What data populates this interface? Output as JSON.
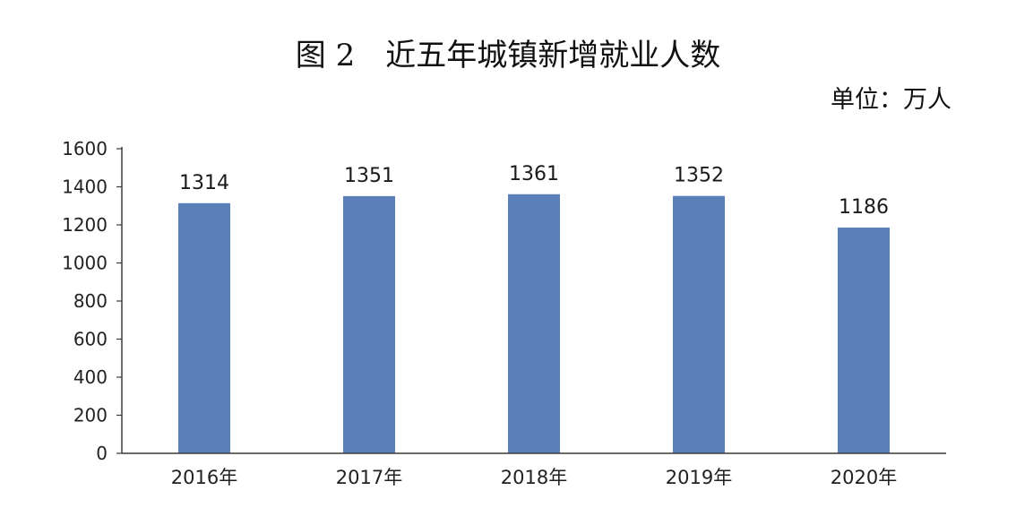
{
  "title": "图 2　近五年城镇新增就业人数",
  "unit_label": "单位：万人",
  "chart_data": {
    "type": "bar",
    "title": "图 2　近五年城镇新增就业人数",
    "xlabel": "",
    "ylabel": "",
    "unit": "单位：万人",
    "categories": [
      "2016年",
      "2017年",
      "2018年",
      "2019年",
      "2020年"
    ],
    "values": [
      1314,
      1351,
      1361,
      1352,
      1186
    ],
    "data_labels": [
      "1314",
      "1351",
      "1361",
      "1352",
      "1186"
    ],
    "ylim": [
      0,
      1600
    ],
    "yticks": [
      0,
      200,
      400,
      600,
      800,
      1000,
      1200,
      1400,
      1600
    ],
    "ytick_labels": [
      "0",
      "200",
      "400",
      "600",
      "800",
      "1000",
      "1200",
      "1400",
      "1600"
    ],
    "grid": false,
    "legend": "none",
    "bar_color": "#5b7fb8",
    "axis_color": "#3a3a3a"
  }
}
